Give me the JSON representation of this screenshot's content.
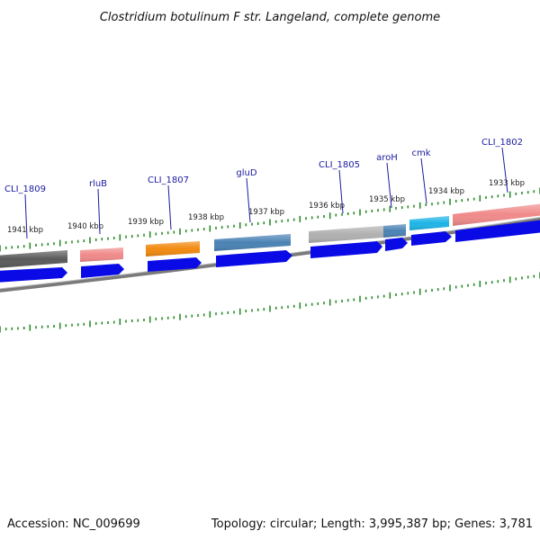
{
  "title": "Clostridium botulinum F str. Langeland, complete genome",
  "footer": {
    "accession": "Accession: NC_009699",
    "summary": "Topology: circular; Length: 3,995,387 bp; Genes: 3,781"
  },
  "colors": {
    "cds": "#0a0ae6",
    "tick": "#2a8a2a",
    "backbone": "#808080"
  },
  "kbp_labels": [
    "1941 kbp",
    "1940 kbp",
    "1939 kbp",
    "1938 kbp",
    "1937 kbp",
    "1936 kbp",
    "1935 kbp",
    "1934 kbp",
    "1933 kbp"
  ],
  "gene_labels": [
    "CLI_1809",
    "rluB",
    "CLI_1807",
    "gluD",
    "CLI_1805",
    "aroH",
    "cmk",
    "CLI_1802"
  ],
  "features": [
    {
      "color": "#5a5a5a"
    },
    {
      "color": "#f08a8a"
    },
    {
      "color": "#f28a10"
    },
    {
      "color": "#4a82b4"
    },
    {
      "color": "#b0b0b0"
    },
    {
      "color": "#4a82b4"
    },
    {
      "color": "#1eb4e6"
    },
    {
      "color": "#f08a8a"
    }
  ]
}
